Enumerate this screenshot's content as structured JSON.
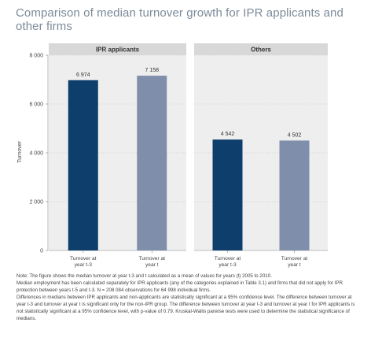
{
  "title": "Comparison of median turnover growth for IPR applicants and other firms",
  "chart_data": {
    "type": "bar",
    "ylabel": "Turnover",
    "ylim": [
      0,
      8000
    ],
    "yticks": [
      0,
      2000,
      4000,
      6000,
      8000
    ],
    "ytick_labels": [
      "0",
      "2 000",
      "4 000",
      "6 000",
      "8 000"
    ],
    "grid": true,
    "panels": [
      {
        "name": "IPR applicants",
        "categories": [
          [
            "Turnover at",
            "year t-3"
          ],
          [
            "Turnover at",
            "year t"
          ]
        ],
        "values": [
          6974,
          7158
        ],
        "value_labels": [
          "6 974",
          "7 158"
        ],
        "colors": [
          "#0e3e6b",
          "#7f8eab"
        ]
      },
      {
        "name": "Others",
        "categories": [
          [
            "Turnover at",
            "year t-3"
          ],
          [
            "Turnover at",
            "year t"
          ]
        ],
        "values": [
          4542,
          4502
        ],
        "value_labels": [
          "4 542",
          "4 502"
        ],
        "colors": [
          "#0e3e6b",
          "#7f8eab"
        ]
      }
    ]
  },
  "notes": {
    "line1": "Note: The figure shows the median turnover at year t-3 and t calculated as a mean of values for years (t) 2005 to 2010.",
    "line2": "Median employment has been calculated separately for IPR applicants (any of the categories explained in Table 3.1) and firms that did not apply for IPR protection between years t-5 and t-3. N = 208 084 observations for 64 998 individual firms.",
    "line3": "Differences in medians between IPR applicants and non-applicants are statistically significant at a 95% confidence level. The difference between turnover at year t-3 and turnover at year t is significant only for the non-IPR group. The difference between turnover at year t-3 and turnover at year t for IPR applicants is not statistically significant at a 95% confidence level, with p-value of 0.79. Kruskal-Wallis parwise tests were used to determine the statistical significance of medians."
  },
  "colors": {
    "panel_header": "#d8d8d8",
    "panel_bg": "#eeeeee",
    "grid": "#c8c8c8",
    "title": "#7c8b9a"
  }
}
